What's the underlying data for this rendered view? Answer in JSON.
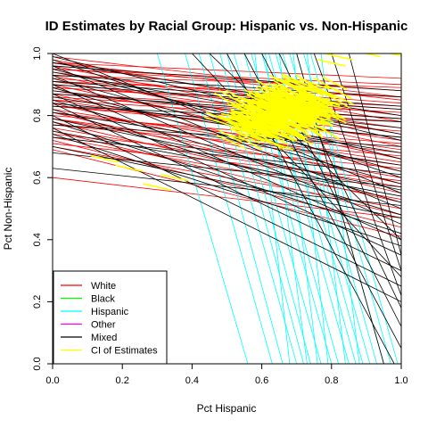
{
  "chart_data": {
    "type": "line",
    "title": "ID Estimates by Racial Group: Hispanic vs. Non-Hispanic",
    "xlabel": "Pct Hispanic",
    "ylabel": "Pct Non-Hispanic",
    "xlim": [
      0,
      1
    ],
    "ylim": [
      0,
      1
    ],
    "x_ticks": [
      "0.0",
      "0.2",
      "0.4",
      "0.6",
      "0.8",
      "1.0"
    ],
    "y_ticks": [
      "0.0",
      "0.2",
      "0.4",
      "0.6",
      "0.8",
      "1.0"
    ],
    "grid": false,
    "legend_position": "bottom-left",
    "legend": [
      {
        "label": "White",
        "color": "#ff0000"
      },
      {
        "label": "Black",
        "color": "#00ff00"
      },
      {
        "label": "Hispanic",
        "color": "#00ffff"
      },
      {
        "label": "Other",
        "color": "#ff00ff"
      },
      {
        "label": "Mixed",
        "color": "#000000"
      },
      {
        "label": "CI of Estimates",
        "color": "#ffff00"
      }
    ],
    "series": [
      {
        "name": "White",
        "color": "#ff0000",
        "lines": [
          {
            "intercept": 0.99,
            "end": 0.86
          },
          {
            "intercept": 0.98,
            "end": 0.78
          },
          {
            "intercept": 0.97,
            "end": 0.85
          },
          {
            "intercept": 0.96,
            "end": 0.74
          },
          {
            "intercept": 0.95,
            "end": 0.88
          },
          {
            "intercept": 0.94,
            "end": 0.8
          },
          {
            "intercept": 0.93,
            "end": 0.7
          },
          {
            "intercept": 0.92,
            "end": 0.84
          },
          {
            "intercept": 0.91,
            "end": 0.76
          },
          {
            "intercept": 0.9,
            "end": 0.66
          },
          {
            "intercept": 0.89,
            "end": 0.82
          },
          {
            "intercept": 0.88,
            "end": 0.72
          },
          {
            "intercept": 0.87,
            "end": 0.62
          },
          {
            "intercept": 0.86,
            "end": 0.79
          },
          {
            "intercept": 0.85,
            "end": 0.69
          },
          {
            "intercept": 0.84,
            "end": 0.58
          },
          {
            "intercept": 0.83,
            "end": 0.75
          },
          {
            "intercept": 0.82,
            "end": 0.65
          },
          {
            "intercept": 0.81,
            "end": 0.55
          },
          {
            "intercept": 0.8,
            "end": 0.71
          },
          {
            "intercept": 0.79,
            "end": 0.6
          },
          {
            "intercept": 0.78,
            "end": 0.52
          },
          {
            "intercept": 0.77,
            "end": 0.67
          },
          {
            "intercept": 0.76,
            "end": 0.57
          },
          {
            "intercept": 0.75,
            "end": 0.48
          },
          {
            "intercept": 0.74,
            "end": 0.63
          },
          {
            "intercept": 0.73,
            "end": 0.53
          },
          {
            "intercept": 0.72,
            "end": 0.44
          },
          {
            "intercept": 0.71,
            "end": 0.59
          },
          {
            "intercept": 0.7,
            "end": 0.5
          },
          {
            "intercept": 0.69,
            "end": 0.41
          },
          {
            "intercept": 0.6,
            "end": 0.47
          },
          {
            "intercept": 0.97,
            "end": 0.92
          },
          {
            "intercept": 0.95,
            "end": 0.9
          },
          {
            "intercept": 0.93,
            "end": 0.89
          },
          {
            "intercept": 0.91,
            "end": 0.86
          },
          {
            "intercept": 0.89,
            "end": 0.83
          },
          {
            "intercept": 0.87,
            "end": 0.81
          },
          {
            "intercept": 0.85,
            "end": 0.78
          },
          {
            "intercept": 0.83,
            "end": 0.73
          },
          {
            "intercept": 0.81,
            "end": 0.68
          },
          {
            "intercept": 0.79,
            "end": 0.64
          }
        ]
      },
      {
        "name": "Hispanic",
        "color": "#00ffff",
        "lines": [
          {
            "top_x": 0.3,
            "bottom_x": 0.56
          },
          {
            "top_x": 0.38,
            "bottom_x": 0.63
          },
          {
            "top_x": 0.42,
            "bottom_x": 0.66
          },
          {
            "top_x": 0.45,
            "bottom_x": 0.7
          },
          {
            "top_x": 0.48,
            "bottom_x": 0.72
          },
          {
            "top_x": 0.5,
            "bottom_x": 0.74
          },
          {
            "top_x": 0.52,
            "bottom_x": 0.77
          },
          {
            "top_x": 0.55,
            "bottom_x": 0.8
          },
          {
            "top_x": 0.57,
            "bottom_x": 0.82
          },
          {
            "top_x": 0.6,
            "bottom_x": 0.85
          },
          {
            "top_x": 0.62,
            "bottom_x": 0.87
          },
          {
            "top_x": 0.64,
            "bottom_x": 0.89
          },
          {
            "top_x": 0.66,
            "bottom_x": 0.91
          },
          {
            "top_x": 0.68,
            "bottom_x": 0.93
          },
          {
            "top_x": 0.7,
            "bottom_x": 0.95
          },
          {
            "top_x": 0.72,
            "bottom_x": 0.97
          },
          {
            "top_x": 0.74,
            "bottom_x": 0.99
          },
          {
            "top_x": 0.58,
            "bottom_x": 0.68
          },
          {
            "top_x": 0.61,
            "bottom_x": 0.73
          },
          {
            "top_x": 0.65,
            "bottom_x": 0.76
          },
          {
            "top_x": 0.69,
            "bottom_x": 0.79
          },
          {
            "top_x": 0.73,
            "bottom_x": 0.84
          },
          {
            "top_x": 0.77,
            "bottom_x": 0.88
          }
        ]
      },
      {
        "name": "Mixed",
        "color": "#000000",
        "lines": [
          {
            "intercept": 1.0,
            "end": 0.55
          },
          {
            "intercept": 0.99,
            "end": 0.72
          },
          {
            "intercept": 0.98,
            "end": 0.6
          },
          {
            "intercept": 0.97,
            "end": 0.8
          },
          {
            "intercept": 0.96,
            "end": 0.5
          },
          {
            "intercept": 0.95,
            "end": 0.66
          },
          {
            "intercept": 0.94,
            "end": 0.74
          },
          {
            "intercept": 0.93,
            "end": 0.45
          },
          {
            "intercept": 0.92,
            "end": 0.62
          },
          {
            "intercept": 0.91,
            "end": 0.83
          },
          {
            "intercept": 0.9,
            "end": 0.4
          },
          {
            "intercept": 0.89,
            "end": 0.58
          },
          {
            "intercept": 0.88,
            "end": 0.76
          },
          {
            "intercept": 0.87,
            "end": 0.35
          },
          {
            "intercept": 0.86,
            "end": 0.68
          },
          {
            "intercept": 0.85,
            "end": 0.52
          },
          {
            "intercept": 0.84,
            "end": 0.3
          },
          {
            "intercept": 0.83,
            "end": 0.78
          },
          {
            "intercept": 0.82,
            "end": 0.48
          },
          {
            "intercept": 0.81,
            "end": 0.64
          },
          {
            "intercept": 0.8,
            "end": 0.25
          },
          {
            "intercept": 0.79,
            "end": 0.56
          },
          {
            "intercept": 0.78,
            "end": 0.42
          },
          {
            "intercept": 0.77,
            "end": 0.7
          },
          {
            "intercept": 0.76,
            "end": 0.2
          },
          {
            "intercept": 0.75,
            "end": 0.54
          },
          {
            "intercept": 0.74,
            "end": 0.38
          },
          {
            "intercept": 0.73,
            "end": 0.61
          },
          {
            "intercept": 0.7,
            "end": 0.47
          },
          {
            "intercept": 0.68,
            "end": 0.57
          },
          {
            "intercept": 0.63,
            "end": 0.51
          },
          {
            "intercept": 0.96,
            "end": 0.88
          },
          {
            "intercept": 0.93,
            "end": 0.86
          },
          {
            "intercept": 0.9,
            "end": 0.82
          },
          {
            "intercept": 0.87,
            "end": 0.79
          },
          {
            "intercept": 0.84,
            "end": 0.73
          },
          {
            "top_x": 0.55,
            "bottom_x": 1.0,
            "bottom_y": 0.05
          },
          {
            "top_x": 0.6,
            "bottom_x": 1.0,
            "bottom_y": 0.12
          },
          {
            "top_x": 0.65,
            "bottom_x": 1.0,
            "bottom_y": 0.18
          },
          {
            "top_x": 0.7,
            "bottom_x": 0.95,
            "bottom_y": 0.0
          },
          {
            "top_x": 0.75,
            "bottom_x": 1.0,
            "bottom_y": 0.22
          },
          {
            "top_x": 0.8,
            "bottom_x": 1.0,
            "bottom_y": 0.3
          },
          {
            "top_x": 0.85,
            "bottom_x": 1.0,
            "bottom_y": 0.35
          },
          {
            "top_x": 0.5,
            "bottom_x": 0.98,
            "bottom_y": 0.0
          },
          {
            "top_x": 0.4,
            "bottom_x": 1.0,
            "bottom_y": 0.28
          },
          {
            "top_x": 0.45,
            "bottom_x": 1.0,
            "bottom_y": 0.4
          }
        ]
      },
      {
        "name": "CI of Estimates",
        "color": "#ffff00",
        "center": [
          0.66,
          0.81
        ],
        "spread": [
          0.09,
          0.05
        ],
        "segments": 260
      }
    ]
  }
}
